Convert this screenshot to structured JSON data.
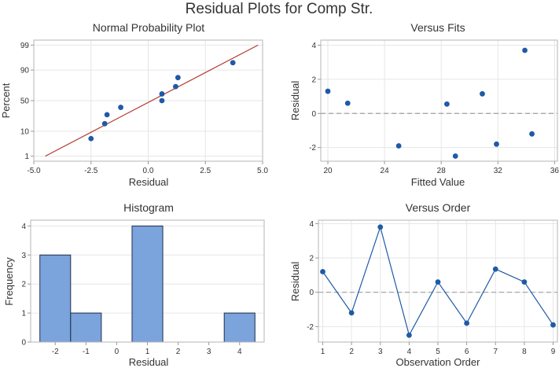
{
  "figure": {
    "title": "Residual Plots for Comp Str.",
    "colors": {
      "marker": "#1f5aa6",
      "fit_line": "#b23a2e",
      "bar_fill": "#7ba3dc",
      "bar_edge": "#1f2f4a",
      "grid": "#e6e6e6",
      "reference_line": "#a0a0a0"
    }
  },
  "chart_data": [
    {
      "type": "scatter",
      "title": "Normal Probability Plot",
      "xlabel": "Residual",
      "ylabel": "Percent",
      "xlim": [
        -5,
        5
      ],
      "x_ticks": [
        -5,
        -2.5,
        0,
        2.5,
        5
      ],
      "x_tick_labels": [
        "-5.0",
        "-2.5",
        "0.0",
        "2.5",
        "5.0"
      ],
      "y_scale": "normal-probability",
      "y_ticks": [
        1,
        10,
        50,
        90,
        99
      ],
      "y_tick_labels": [
        "1",
        "10",
        "50",
        "90",
        "99"
      ],
      "grid": true,
      "points": [
        {
          "x": -2.5,
          "y": 5.6
        },
        {
          "x": -1.9,
          "y": 16.7
        },
        {
          "x": -1.8,
          "y": 27.8
        },
        {
          "x": -1.2,
          "y": 38.9
        },
        {
          "x": 0.6,
          "y": 50.0
        },
        {
          "x": 0.6,
          "y": 61.1
        },
        {
          "x": 1.2,
          "y": 72.2
        },
        {
          "x": 1.3,
          "y": 83.3
        },
        {
          "x": 3.7,
          "y": 94.4
        }
      ],
      "fit_line": {
        "x": [
          -4.5,
          4.8
        ],
        "y": [
          1,
          99
        ]
      }
    },
    {
      "type": "scatter",
      "title": "Versus Fits",
      "xlabel": "Fitted Value",
      "ylabel": "Residual",
      "xlim": [
        19.5,
        36.2
      ],
      "ylim": [
        -2.8,
        4.3
      ],
      "x_ticks": [
        20,
        24,
        28,
        32,
        36
      ],
      "y_ticks": [
        -2,
        0,
        2,
        4
      ],
      "grid": true,
      "reference_line": 0,
      "points": [
        {
          "x": 20.0,
          "y": 1.3
        },
        {
          "x": 21.4,
          "y": 0.6
        },
        {
          "x": 25.0,
          "y": -1.9
        },
        {
          "x": 28.4,
          "y": 0.55
        },
        {
          "x": 29.0,
          "y": -2.5
        },
        {
          "x": 30.9,
          "y": 1.15
        },
        {
          "x": 31.9,
          "y": -1.8
        },
        {
          "x": 33.9,
          "y": 3.7
        },
        {
          "x": 34.4,
          "y": -1.2
        }
      ]
    },
    {
      "type": "bar",
      "title": "Histogram",
      "xlabel": "Residual",
      "ylabel": "Frequency",
      "xlim": [
        -2.8,
        4.8
      ],
      "ylim": [
        0,
        4.2
      ],
      "x_ticks": [
        -2,
        -1,
        0,
        1,
        2,
        3,
        4
      ],
      "y_ticks": [
        0,
        1,
        2,
        3,
        4
      ],
      "grid": true,
      "bins": [
        {
          "start": -2.5,
          "end": -1.5,
          "label": "-2",
          "value": 3
        },
        {
          "start": -1.5,
          "end": -0.5,
          "label": "-1",
          "value": 1
        },
        {
          "start": -0.5,
          "end": 0.5,
          "label": "0",
          "value": 0
        },
        {
          "start": 0.5,
          "end": 1.5,
          "label": "1",
          "value": 4
        },
        {
          "start": 1.5,
          "end": 2.5,
          "label": "2",
          "value": 0
        },
        {
          "start": 2.5,
          "end": 3.5,
          "label": "3",
          "value": 0
        },
        {
          "start": 3.5,
          "end": 4.5,
          "label": "4",
          "value": 1
        }
      ]
    },
    {
      "type": "line",
      "title": "Versus Order",
      "xlabel": "Observation Order",
      "ylabel": "Residual",
      "xlim": [
        0.85,
        9.15
      ],
      "ylim": [
        -2.9,
        4.2
      ],
      "x_ticks": [
        1,
        2,
        3,
        4,
        5,
        6,
        7,
        8,
        9
      ],
      "y_ticks": [
        -2,
        0,
        2,
        4
      ],
      "grid": true,
      "reference_line": 0,
      "x": [
        1,
        2,
        3,
        4,
        5,
        6,
        7,
        8,
        9
      ],
      "y": [
        1.2,
        -1.2,
        3.8,
        -2.5,
        0.6,
        -1.8,
        1.35,
        0.6,
        -1.9
      ]
    }
  ]
}
